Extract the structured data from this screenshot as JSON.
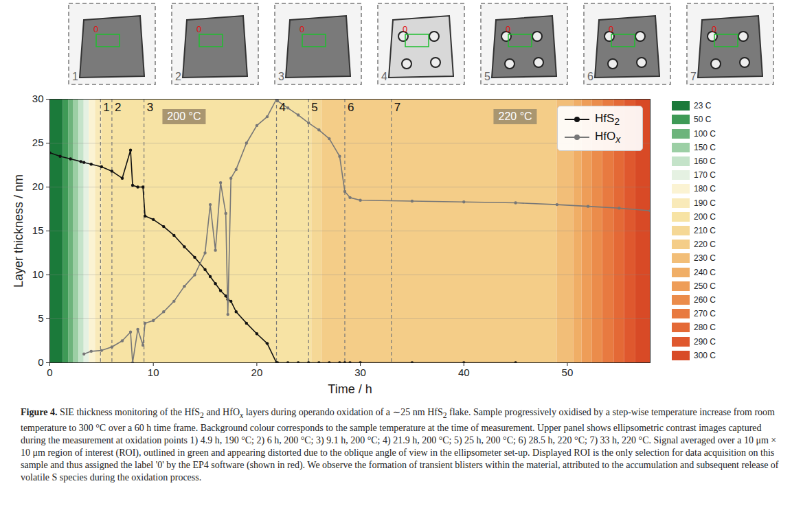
{
  "panels": {
    "labels": [
      "1",
      "2",
      "3",
      "4",
      "5",
      "6",
      "7"
    ],
    "roi_label": "0"
  },
  "chart_data": {
    "type": "line",
    "x_label": "Time / h",
    "y_label": "Layer thickness / nm",
    "xlim": [
      0,
      58
    ],
    "xticks": [
      0,
      10,
      20,
      30,
      40,
      50
    ],
    "ylim": [
      0,
      30
    ],
    "yticks": [
      0,
      5,
      10,
      15,
      20,
      25,
      30
    ],
    "grid": "y",
    "legend": "top-right",
    "x": [
      0,
      1,
      2,
      3,
      3.3,
      4,
      5,
      6,
      7,
      7.8,
      8,
      8.5,
      9,
      9.2,
      10,
      11,
      12,
      13,
      14,
      15,
      15.5,
      16,
      16.5,
      17,
      17.2,
      17.5,
      18,
      19,
      20,
      21,
      21.9,
      22,
      23,
      24,
      25,
      26,
      27,
      28,
      28.5,
      29,
      30,
      35,
      40,
      45,
      49,
      52,
      55,
      58
    ],
    "series": [
      {
        "name": "HfS2",
        "color": "#111111",
        "marker": "circle",
        "line_style": "solid",
        "values": [
          23.9,
          23.5,
          23.2,
          22.9,
          22.8,
          22.6,
          22.3,
          21.8,
          21.0,
          24.2,
          20.2,
          20.0,
          20.0,
          16.7,
          16.3,
          15.5,
          14.5,
          13.2,
          12.0,
          10.6,
          9.8,
          9.0,
          8.2,
          7.6,
          7.2,
          7.0,
          5.8,
          4.5,
          3.3,
          2.2,
          0,
          0,
          0,
          0,
          0,
          0,
          0,
          0,
          0,
          0,
          0,
          0,
          0,
          0,
          null,
          null,
          null,
          null
        ]
      },
      {
        "name": "HfOx",
        "color": "#777777",
        "marker": "circle",
        "line_style": "solid",
        "values": [
          null,
          null,
          null,
          null,
          1.0,
          1.3,
          1.4,
          1.8,
          2.5,
          3.5,
          0,
          3.8,
          2.0,
          4.5,
          4.8,
          5.8,
          7.0,
          8.7,
          10.0,
          12.5,
          18.0,
          12.8,
          20.5,
          17.0,
          5.5,
          21.0,
          22.0,
          25.0,
          27.0,
          28.0,
          30.0,
          29.8,
          29.0,
          28.2,
          27.3,
          26.5,
          25.5,
          23.5,
          19.5,
          18.8,
          18.5,
          18.4,
          18.3,
          18.2,
          18.0,
          17.8,
          17.6,
          17.3
        ]
      }
    ],
    "events": {
      "x": [
        4.9,
        6,
        9.1,
        21.9,
        25,
        28.5,
        33
      ],
      "labels": [
        "1",
        "2",
        "3",
        "4",
        "5",
        "6",
        "7"
      ]
    },
    "annotations": [
      {
        "text": "200 °C",
        "x": 13,
        "y": 28
      },
      {
        "text": "220 °C",
        "x": 45,
        "y": 28
      }
    ],
    "temperature_bands": {
      "labels": [
        "23 C",
        "50 C",
        "100 C",
        "150 C",
        "160 C",
        "170 C",
        "180 C",
        "190 C",
        "200 C",
        "210 C",
        "220 C",
        "230 C",
        "240 C",
        "250 C",
        "260 C",
        "270 C",
        "280 C",
        "290 C",
        "300 C"
      ],
      "values": [
        23,
        50,
        100,
        150,
        160,
        170,
        180,
        190,
        200,
        210,
        220,
        230,
        240,
        250,
        260,
        270,
        280,
        290,
        300
      ],
      "colors": [
        "#1b7a3a",
        "#3e9a56",
        "#6db47c",
        "#9ccfa5",
        "#c4e3c9",
        "#e5f1e2",
        "#fbf3d3",
        "#f9eab9",
        "#f7e3a4",
        "#f5d896",
        "#f4cd88",
        "#f2be78",
        "#f0ae66",
        "#ee9d58",
        "#eb8c4b",
        "#e87a40",
        "#e46936",
        "#df582e",
        "#d84a26"
      ],
      "start": [
        0,
        1.3,
        1.8,
        2.3,
        2.8,
        3.3,
        3.8,
        4.4,
        5.0,
        25.3,
        26.3,
        49.0,
        50.6,
        51.4,
        52.4,
        53.4,
        54.5,
        55.5,
        56.6
      ],
      "end": [
        1.3,
        1.8,
        2.3,
        2.8,
        3.3,
        3.8,
        4.4,
        5.0,
        25.3,
        26.3,
        49.0,
        50.6,
        51.4,
        52.4,
        53.4,
        54.5,
        55.5,
        56.6,
        58
      ]
    }
  },
  "caption": {
    "label": "Figure 4.",
    "text": "SIE thickness monitoring of the HfS2 and HfOx layers during operando oxidation of a ∼25 nm HfS2 flake. Sample progressively oxidised by a step-wise temperature increase from room temperature to 300 °C over a 60 h time frame. Background colour corresponds to the sample temperature at the time of measurement. Upper panel shows ellipsometric contrast images captured during the measurement at oxidation points 1) 4.9 h, 190 °C; 2) 6 h, 200 °C; 3) 9.1 h, 200 °C; 4) 21.9 h, 200 °C; 5) 25 h, 200 °C; 6) 28.5 h, 220 °C; 7) 33 h, 220 °C. Signal averaged over a 10 μm × 10 μm region of interest (ROI), outlined in green and appearing distorted due to the oblique angle of view in the ellipsometer set-up. Displayed ROI is the only selection for data acquisition on this sample and thus assigned the label '0' by the EP4 software (shown in red). We observe the formation of transient blisters within the material, attributed to the accumulation and subsequent release of volatile S species during the oxidation process."
  }
}
